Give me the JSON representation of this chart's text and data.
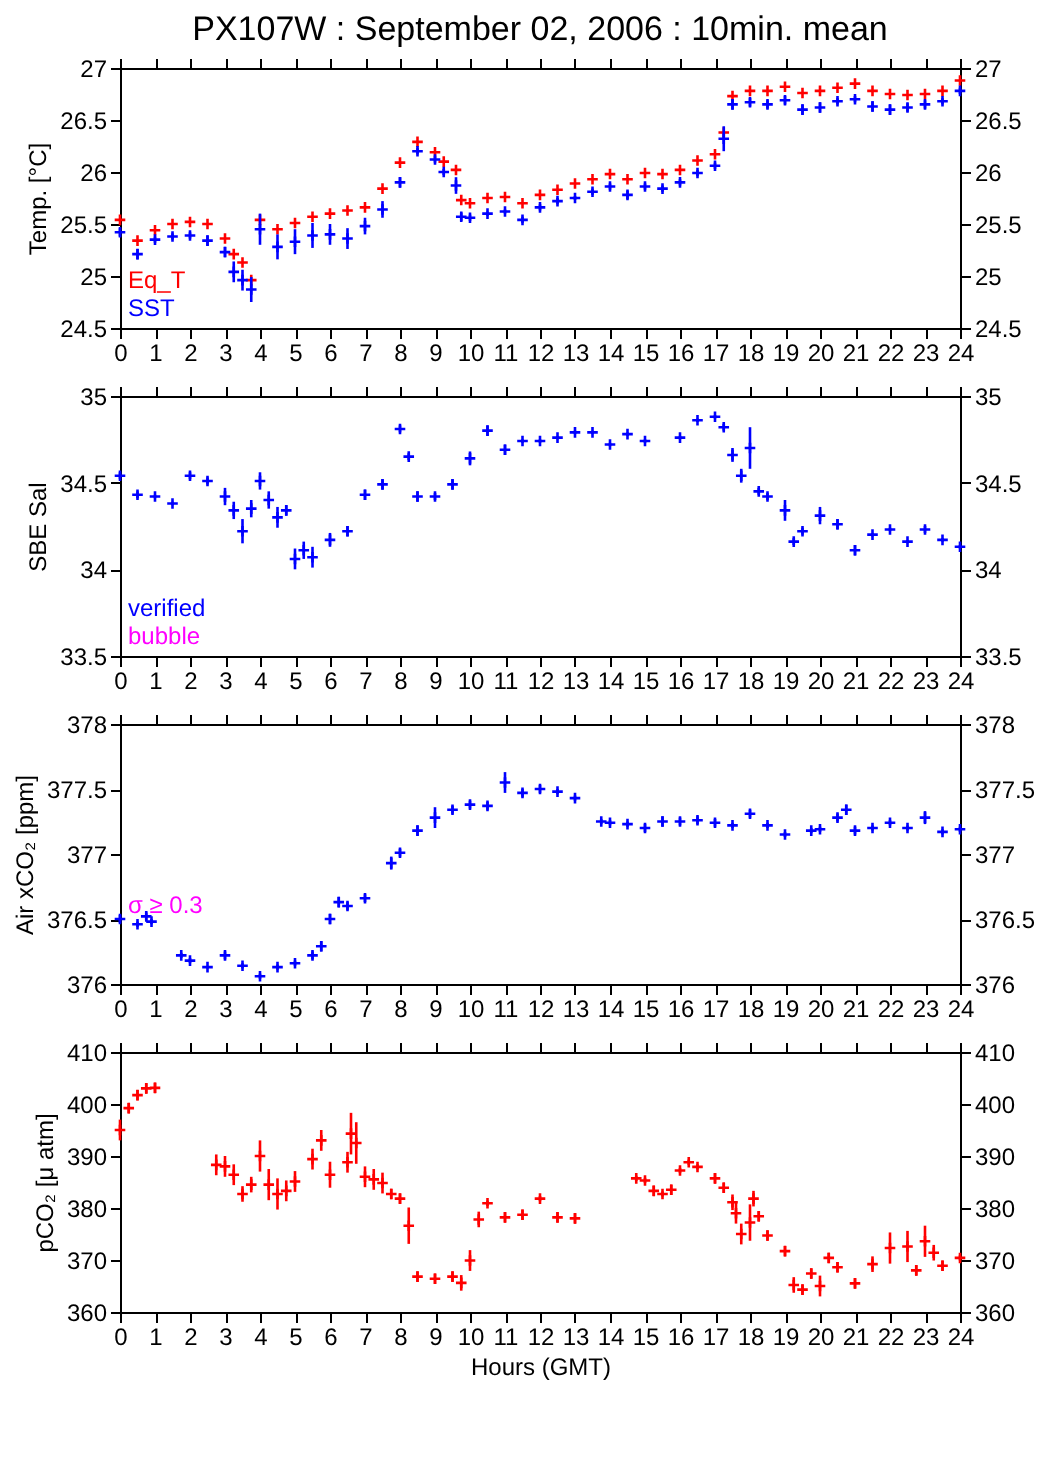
{
  "chart_data": [
    {
      "type": "scatter",
      "title": "PX107W : September 02, 2006 : 10min. mean",
      "ylabel": "Temp. [°C]",
      "xlim": [
        0,
        24
      ],
      "xticks": [
        0,
        1,
        2,
        3,
        4,
        5,
        6,
        7,
        8,
        9,
        10,
        11,
        12,
        13,
        14,
        15,
        16,
        17,
        18,
        19,
        20,
        21,
        22,
        23,
        24
      ],
      "ylim": [
        24.5,
        27
      ],
      "yticks": [
        24.5,
        25,
        25.5,
        26,
        26.5,
        27
      ],
      "y2lim": [
        24.5,
        27
      ],
      "y2ticks": [
        24.5,
        25,
        25.5,
        26,
        26.5,
        27
      ],
      "marker": "cross",
      "grid": false,
      "legend": "bottom left",
      "x": [
        0,
        0.5,
        1,
        1.5,
        2,
        2.5,
        3,
        3.25,
        3.5,
        3.75,
        4,
        4.5,
        5,
        5.5,
        6,
        6.5,
        7,
        7.5,
        8,
        8.5,
        9,
        9.25,
        9.6,
        9.75,
        10,
        10.5,
        11,
        11.5,
        12,
        12.5,
        13,
        13.5,
        14,
        14.5,
        15,
        15.5,
        16,
        16.5,
        17,
        17.25,
        17.5,
        18,
        18.5,
        19,
        19.5,
        20,
        20.5,
        21,
        21.5,
        22,
        22.5,
        23,
        23.5,
        24
      ],
      "series": [
        {
          "name": "Eq_T",
          "color": "#ff0000",
          "values": [
            25.54,
            25.34,
            25.44,
            25.5,
            25.52,
            25.5,
            25.36,
            25.21,
            25.13,
            24.96,
            25.54,
            25.45,
            25.51,
            25.57,
            25.6,
            25.63,
            25.66,
            25.84,
            26.09,
            26.29,
            26.19,
            26.1,
            26.02,
            25.73,
            25.7,
            25.75,
            25.76,
            25.7,
            25.78,
            25.83,
            25.89,
            25.93,
            25.98,
            25.93,
            25.99,
            25.98,
            26.02,
            26.11,
            26.17,
            26.38,
            26.73,
            26.78,
            26.78,
            26.82,
            26.76,
            26.78,
            26.81,
            26.85,
            26.78,
            26.75,
            26.74,
            26.75,
            26.78,
            26.88
          ]
        },
        {
          "name": "SST",
          "color": "#0000ff",
          "values": [
            25.42,
            25.21,
            25.35,
            25.38,
            25.39,
            25.34,
            25.23,
            25.04,
            24.96,
            24.87,
            25.45,
            25.28,
            25.33,
            25.39,
            25.4,
            25.36,
            25.48,
            25.64,
            25.9,
            26.2,
            26.12,
            26.0,
            25.87,
            25.57,
            25.56,
            25.6,
            25.62,
            25.54,
            25.66,
            25.72,
            25.75,
            25.81,
            25.86,
            25.78,
            25.86,
            25.84,
            25.9,
            25.99,
            26.06,
            26.32,
            26.65,
            26.67,
            26.65,
            26.69,
            26.6,
            26.62,
            26.68,
            26.7,
            26.63,
            26.6,
            26.62,
            26.65,
            26.68,
            26.78
          ],
          "errors": [
            0.04,
            0.05,
            0.03,
            0.03,
            0.03,
            0.05,
            0.05,
            0.1,
            0.1,
            0.12,
            0.15,
            0.12,
            0.12,
            0.12,
            0.1,
            0.1,
            0.08,
            0.08,
            0.05,
            0.03,
            0.03,
            0.03,
            0.08,
            0.04,
            0.03,
            0.02,
            0.02,
            0.03,
            0.03,
            0.03,
            0.02,
            0.03,
            0.03,
            0.04,
            0.03,
            0.03,
            0.03,
            0.03,
            0.03,
            0.12,
            0.05,
            0.04,
            0.04,
            0.04,
            0.05,
            0.05,
            0.03,
            0.03,
            0.05,
            0.05,
            0.04,
            0.04,
            0.03,
            0.03
          ]
        }
      ]
    },
    {
      "type": "scatter",
      "ylabel": "SBE Sal",
      "xlim": [
        0,
        24
      ],
      "xticks": [
        0,
        1,
        2,
        3,
        4,
        5,
        6,
        7,
        8,
        9,
        10,
        11,
        12,
        13,
        14,
        15,
        16,
        17,
        18,
        19,
        20,
        21,
        22,
        23,
        24
      ],
      "ylim": [
        33.5,
        35
      ],
      "yticks": [
        33.5,
        34,
        34.5,
        35
      ],
      "y2lim": [
        33.5,
        35
      ],
      "y2ticks": [
        33.5,
        34,
        34.5,
        35
      ],
      "marker": "cross",
      "grid": false,
      "legend": "bottom left",
      "annotations": [
        "bubble"
      ],
      "x": [
        0,
        0.5,
        1,
        1.5,
        2,
        2.5,
        3,
        3.25,
        3.5,
        3.75,
        4,
        4.25,
        4.5,
        4.75,
        5,
        5.25,
        5.5,
        6,
        6.5,
        7,
        7.5,
        8,
        8.25,
        8.5,
        9,
        9.5,
        10,
        10.5,
        11,
        11.5,
        12,
        12.5,
        13,
        13.5,
        14,
        14.5,
        15,
        16,
        16.5,
        17,
        17.25,
        17.5,
        17.75,
        18,
        18.25,
        18.5,
        19,
        19.25,
        19.5,
        20,
        20.5,
        21,
        21.5,
        22,
        22.5,
        23,
        23.5,
        24
      ],
      "series": [
        {
          "name": "verified",
          "color": "#0000ff",
          "values": [
            34.54,
            34.43,
            34.42,
            34.38,
            34.54,
            34.51,
            34.42,
            34.34,
            34.22,
            34.35,
            34.51,
            34.4,
            34.3,
            34.34,
            34.06,
            34.11,
            34.07,
            34.17,
            34.22,
            34.43,
            34.49,
            34.81,
            34.65,
            34.42,
            34.42,
            34.49,
            34.64,
            34.8,
            34.69,
            34.74,
            34.74,
            34.76,
            34.79,
            34.79,
            34.72,
            34.78,
            34.74,
            34.76,
            34.86,
            34.88,
            34.82,
            34.66,
            34.54,
            34.7,
            34.45,
            34.42,
            34.34,
            34.16,
            34.22,
            34.31,
            34.26,
            34.11,
            34.2,
            34.23,
            34.16,
            34.23,
            34.17,
            34.13
          ],
          "errors": [
            0.02,
            0.02,
            0.01,
            0.01,
            0.02,
            0.02,
            0.05,
            0.05,
            0.07,
            0.05,
            0.05,
            0.05,
            0.06,
            0.03,
            0.06,
            0.05,
            0.06,
            0.04,
            0.03,
            0.03,
            0.03,
            0.02,
            0.02,
            0.03,
            0.02,
            0.03,
            0.04,
            0.03,
            0.03,
            0.01,
            0.01,
            0.01,
            0.01,
            0.01,
            0.01,
            0.01,
            0.01,
            0.01,
            0.01,
            0.01,
            0.02,
            0.04,
            0.04,
            0.12,
            0.02,
            0.02,
            0.06,
            0.02,
            0.02,
            0.05,
            0.03,
            0.03,
            0.01,
            0.01,
            0.01,
            0.02,
            0.01,
            0.01
          ]
        }
      ]
    },
    {
      "type": "scatter",
      "ylabel": "Air xCO₂ [ppm]",
      "xlim": [
        0,
        24
      ],
      "xticks": [
        0,
        1,
        2,
        3,
        4,
        5,
        6,
        7,
        8,
        9,
        10,
        11,
        12,
        13,
        14,
        15,
        16,
        17,
        18,
        19,
        20,
        21,
        22,
        23,
        24
      ],
      "ylim": [
        376,
        378
      ],
      "yticks": [
        376,
        376.5,
        377,
        377.5,
        378
      ],
      "y2lim": [
        376,
        378
      ],
      "y2ticks": [
        376,
        376.5,
        377,
        377.5,
        378
      ],
      "marker": "cross",
      "grid": false,
      "annotations": [
        "σ ≥ 0.3"
      ],
      "x": [
        0,
        0.5,
        0.75,
        0.9,
        1.75,
        2,
        2.5,
        3,
        3.5,
        4,
        4.5,
        5,
        5.5,
        5.75,
        6,
        6.25,
        6.5,
        7,
        7.75,
        8,
        8.5,
        9,
        9.5,
        10,
        10.5,
        11,
        11.5,
        12,
        12.5,
        13,
        13.75,
        14,
        14.5,
        15,
        15.5,
        16,
        16.5,
        17,
        17.5,
        18,
        18.5,
        19,
        19.75,
        20,
        20.5,
        20.75,
        21,
        21.5,
        22,
        22.5,
        23,
        23.5,
        24
      ],
      "series": [
        {
          "color": "#0000ff",
          "values": [
            376.5,
            376.46,
            376.52,
            376.48,
            376.22,
            376.18,
            376.13,
            376.22,
            376.14,
            376.06,
            376.13,
            376.16,
            376.22,
            376.29,
            376.5,
            376.63,
            376.6,
            376.66,
            376.93,
            377.01,
            377.18,
            377.28,
            377.34,
            377.38,
            377.37,
            377.55,
            377.47,
            377.5,
            377.48,
            377.43,
            377.25,
            377.24,
            377.23,
            377.2,
            377.25,
            377.25,
            377.26,
            377.24,
            377.22,
            377.31,
            377.22,
            377.15,
            377.18,
            377.19,
            377.28,
            377.34,
            377.18,
            377.2,
            377.24,
            377.2,
            377.28,
            377.17,
            377.19
          ],
          "errors": [
            0.03,
            0.02,
            0.03,
            0.02,
            0.02,
            0.02,
            0.01,
            0.03,
            0.02,
            0.02,
            0.02,
            0.02,
            0.03,
            0.04,
            0.04,
            0.04,
            0.03,
            0.03,
            0.05,
            0.03,
            0.04,
            0.08,
            0.03,
            0.03,
            0.03,
            0.08,
            0.03,
            0.03,
            0.02,
            0.02,
            0.02,
            0.02,
            0.02,
            0.03,
            0.04,
            0.03,
            0.03,
            0.03,
            0.02,
            0.03,
            0.02,
            0.02,
            0.02,
            0.02,
            0.03,
            0.04,
            0.03,
            0.02,
            0.02,
            0.02,
            0.05,
            0.02,
            0.02
          ]
        }
      ]
    },
    {
      "type": "scatter",
      "ylabel": "pCO₂ [μ atm]",
      "xlabel": "Hours (GMT)",
      "xlim": [
        0,
        24
      ],
      "xticks": [
        0,
        1,
        2,
        3,
        4,
        5,
        6,
        7,
        8,
        9,
        10,
        11,
        12,
        13,
        14,
        15,
        16,
        17,
        18,
        19,
        20,
        21,
        22,
        23,
        24
      ],
      "ylim": [
        360,
        410
      ],
      "yticks": [
        360,
        370,
        380,
        390,
        400,
        410
      ],
      "y2lim": [
        360,
        410
      ],
      "y2ticks": [
        360,
        370,
        380,
        390,
        400,
        410
      ],
      "marker": "cross",
      "grid": false,
      "x": [
        0,
        0.25,
        0.5,
        0.75,
        1,
        2.75,
        3,
        3.25,
        3.5,
        3.75,
        4,
        4.25,
        4.5,
        4.75,
        5,
        5.5,
        5.75,
        6,
        6.5,
        6.6,
        6.75,
        7,
        7.25,
        7.5,
        7.75,
        8,
        8.25,
        8.5,
        9,
        9.5,
        9.75,
        10,
        10.25,
        10.5,
        11,
        11.5,
        12,
        12.5,
        13,
        14.75,
        15,
        15.25,
        15.5,
        15.75,
        16,
        16.25,
        16.5,
        17,
        17.25,
        17.5,
        17.6,
        17.75,
        18,
        18.1,
        18.25,
        18.5,
        19,
        19.25,
        19.5,
        19.75,
        20,
        20.25,
        20.5,
        21,
        21.5,
        22,
        22.5,
        22.75,
        23,
        23.25,
        23.5,
        24
      ],
      "series": [
        {
          "color": "#ff0000",
          "values": [
            395,
            399.2,
            401.7,
            403,
            403.1,
            388.3,
            388,
            386.4,
            382.7,
            384.5,
            390,
            384.5,
            382.7,
            383.3,
            385.1,
            389.4,
            393,
            386.4,
            388.8,
            394.3,
            392.5,
            386,
            385.5,
            384.8,
            382.7,
            381.8,
            376.6,
            366.8,
            366.4,
            366.8,
            365.6,
            369.9,
            377.8,
            380.9,
            378.2,
            378.7,
            381.8,
            378.2,
            378,
            385.7,
            385.3,
            383.3,
            382.7,
            383.5,
            387.2,
            388.8,
            387.9,
            385.7,
            383.9,
            381.1,
            379,
            375,
            377.2,
            381.8,
            378.4,
            374.7,
            371.7,
            365.2,
            364.3,
            367.4,
            365,
            370.4,
            368.6,
            365.5,
            369.2,
            372.3,
            372.6,
            368,
            373.6,
            371.4,
            368.9,
            370.4
          ],
          "errors": [
            2,
            1,
            1,
            1,
            1,
            2,
            2,
            2,
            1.5,
            1.5,
            3,
            3,
            3,
            2,
            2,
            2,
            2,
            2.5,
            2,
            4,
            4,
            2,
            2,
            2,
            1,
            1,
            3.5,
            1,
            1,
            1,
            1.5,
            2,
            1.5,
            0.5,
            1,
            1,
            0.5,
            1,
            1,
            0.5,
            0.5,
            1,
            0.5,
            1,
            0.5,
            0.5,
            0.5,
            1,
            1,
            1.5,
            2,
            2,
            3.5,
            1.5,
            1,
            1,
            1,
            1.5,
            1,
            1,
            2,
            1,
            1,
            1,
            1.5,
            3,
            3,
            1,
            3,
            1.5,
            1,
            0.5
          ]
        }
      ]
    }
  ]
}
